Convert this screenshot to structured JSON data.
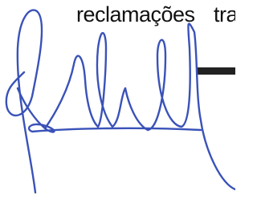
{
  "line": [
    "reclamações",
    "tra"
  ]
}
